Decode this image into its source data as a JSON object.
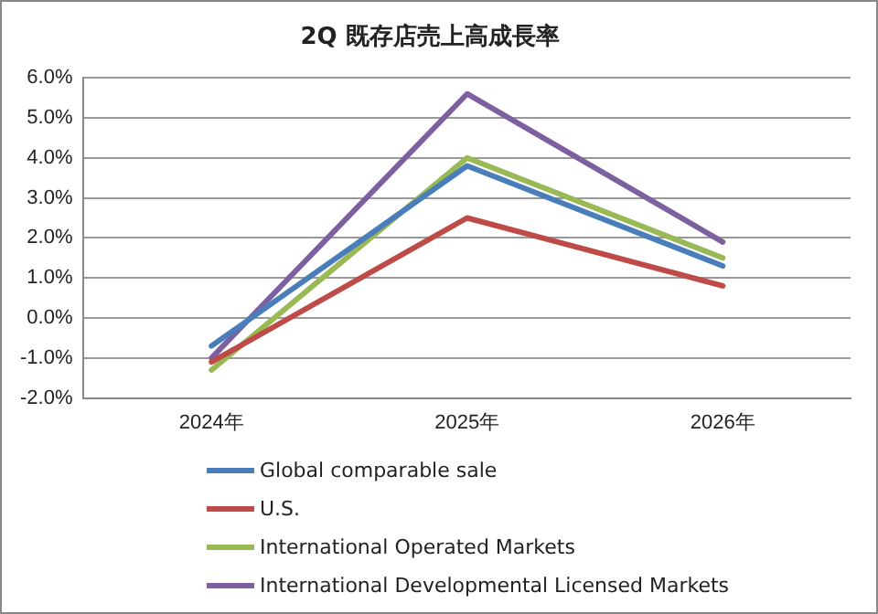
{
  "chart_data": {
    "type": "line",
    "title": "2Q 既存店売上高成長率",
    "categories": [
      "2024年",
      "2025年",
      "2026年"
    ],
    "series": [
      {
        "name": "Global comparable sale",
        "color": "#4a7ebb",
        "values": [
          -0.7,
          3.8,
          1.3
        ]
      },
      {
        "name": "U.S.",
        "color": "#be4b48",
        "values": [
          -1.1,
          2.5,
          0.8
        ]
      },
      {
        "name": "International Operated Markets",
        "color": "#98b954",
        "values": [
          -1.3,
          4.0,
          1.5
        ]
      },
      {
        "name": "International Developmental Licensed Markets",
        "color": "#7d60a0",
        "values": [
          -1.0,
          5.6,
          1.9
        ]
      }
    ],
    "ylim": [
      -2,
      6
    ],
    "yticks": [
      {
        "value": -2,
        "label": "-2.0%"
      },
      {
        "value": -1,
        "label": "-1.0%"
      },
      {
        "value": 0,
        "label": "0.0%"
      },
      {
        "value": 1,
        "label": "1.0%"
      },
      {
        "value": 2,
        "label": "2.0%"
      },
      {
        "value": 3,
        "label": "3.0%"
      },
      {
        "value": 4,
        "label": "4.0%"
      },
      {
        "value": 5,
        "label": "5.0%"
      },
      {
        "value": 6,
        "label": "6.0%"
      }
    ],
    "grid": "y",
    "legend": "bottom",
    "marker": "none",
    "line_style": "solid"
  }
}
